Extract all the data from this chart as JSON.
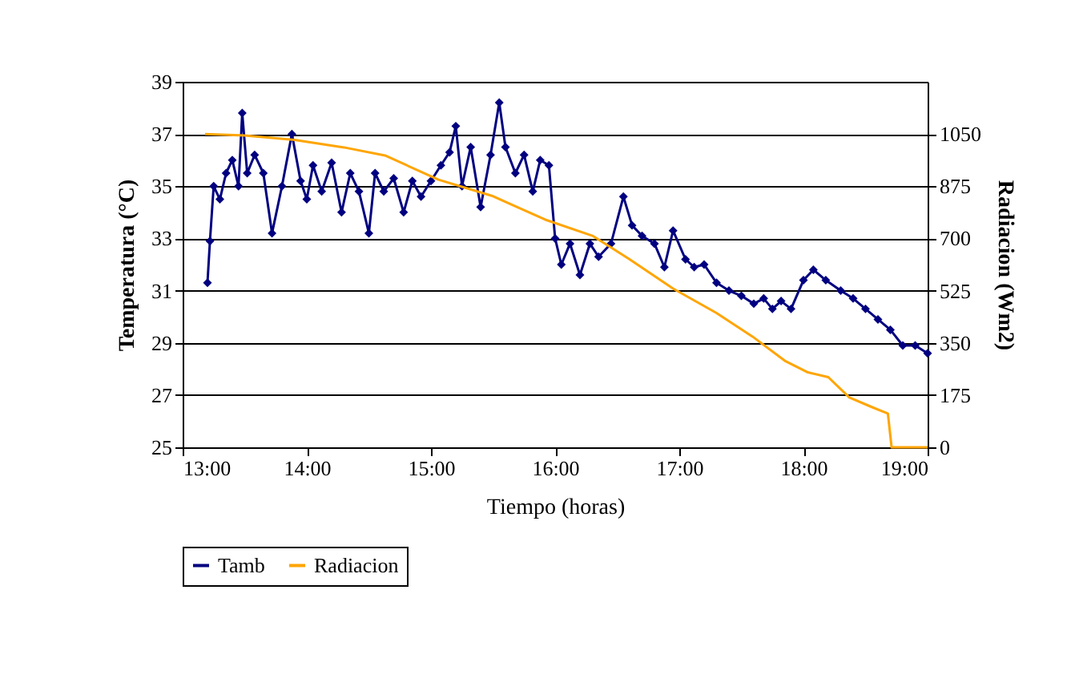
{
  "chart_data": {
    "type": "line",
    "xlabel": "Tiempo (horas)",
    "ylabel": "Temperatura (°C)",
    "y2label": "Radiacion (Wm2)",
    "xlim": [
      13,
      19
    ],
    "xticks": [
      {
        "value": 13,
        "label": "13:00"
      },
      {
        "value": 14,
        "label": "14:00"
      },
      {
        "value": 15,
        "label": "15:00"
      },
      {
        "value": 16,
        "label": "16:00"
      },
      {
        "value": 17,
        "label": "17:00"
      },
      {
        "value": 18,
        "label": "18:00"
      },
      {
        "value": 19,
        "label": "19:00"
      }
    ],
    "ylim": [
      25,
      39
    ],
    "yticks": [
      25,
      27,
      29,
      31,
      33,
      35,
      37,
      39
    ],
    "y2lim": [
      0,
      1225
    ],
    "y2ticks": [
      0,
      175,
      350,
      525,
      700,
      875,
      1050
    ],
    "grid": "y",
    "legend": "bottom",
    "line_style": "solid",
    "series": [
      {
        "name": "Tamb",
        "color": "#000080",
        "marker": "diamond",
        "x": [
          13.2,
          13.22,
          13.25,
          13.3,
          13.35,
          13.4,
          13.45,
          13.48,
          13.52,
          13.58,
          13.65,
          13.72,
          13.8,
          13.88,
          13.95,
          14,
          14.05,
          14.12,
          14.2,
          14.28,
          14.35,
          14.42,
          14.5,
          14.55,
          14.62,
          14.7,
          14.78,
          14.85,
          14.92,
          15,
          15.08,
          15.15,
          15.2,
          15.25,
          15.32,
          15.4,
          15.48,
          15.55,
          15.6,
          15.68,
          15.75,
          15.82,
          15.88,
          15.95,
          16,
          16.05,
          16.12,
          16.2,
          16.28,
          16.35,
          16.45,
          16.55,
          16.62,
          16.7,
          16.8,
          16.88,
          16.95,
          17.05,
          17.12,
          17.2,
          17.3,
          17.4,
          17.5,
          17.6,
          17.68,
          17.75,
          17.82,
          17.9,
          18,
          18.08,
          18.18,
          18.3,
          18.4,
          18.5,
          18.6,
          18.7,
          18.8,
          18.9,
          19
        ],
        "values": [
          31.3,
          32.9,
          35,
          34.5,
          35.5,
          36,
          35,
          37.8,
          35.5,
          36.2,
          35.5,
          33.2,
          35,
          37,
          35.2,
          34.5,
          35.8,
          34.8,
          35.9,
          34,
          35.5,
          34.8,
          33.2,
          35.5,
          34.8,
          35.3,
          34,
          35.2,
          34.6,
          35.2,
          35.8,
          36.3,
          37.3,
          35,
          36.5,
          34.2,
          36.2,
          38.2,
          36.5,
          35.5,
          36.2,
          34.8,
          36,
          35.8,
          33,
          32,
          32.8,
          31.6,
          32.8,
          32.3,
          32.8,
          34.6,
          33.5,
          33.1,
          32.8,
          31.9,
          33.3,
          32.2,
          31.9,
          32,
          31.3,
          31,
          30.8,
          30.5,
          30.7,
          30.3,
          30.6,
          30.3,
          31.4,
          31.8,
          31.4,
          31,
          30.7,
          30.3,
          29.9,
          29.5,
          28.9,
          28.9,
          28.6
        ]
      },
      {
        "name": "Radiacion",
        "color": "#ffa500",
        "marker": "none",
        "axis": "y2",
        "x": [
          13.18,
          13.5,
          13.9,
          14.3,
          14.63,
          15.06,
          15.49,
          15.92,
          16.3,
          16.6,
          16.95,
          17.3,
          17.59,
          17.85,
          18.03,
          18.2,
          18.37,
          18.55,
          18.68,
          18.71,
          19
        ],
        "values": [
          1050,
          1045,
          1030,
          1005,
          978,
          897,
          843,
          763,
          709,
          630,
          532,
          450,
          371,
          290,
          252,
          235,
          167,
          135,
          113,
          0,
          0
        ]
      }
    ]
  }
}
